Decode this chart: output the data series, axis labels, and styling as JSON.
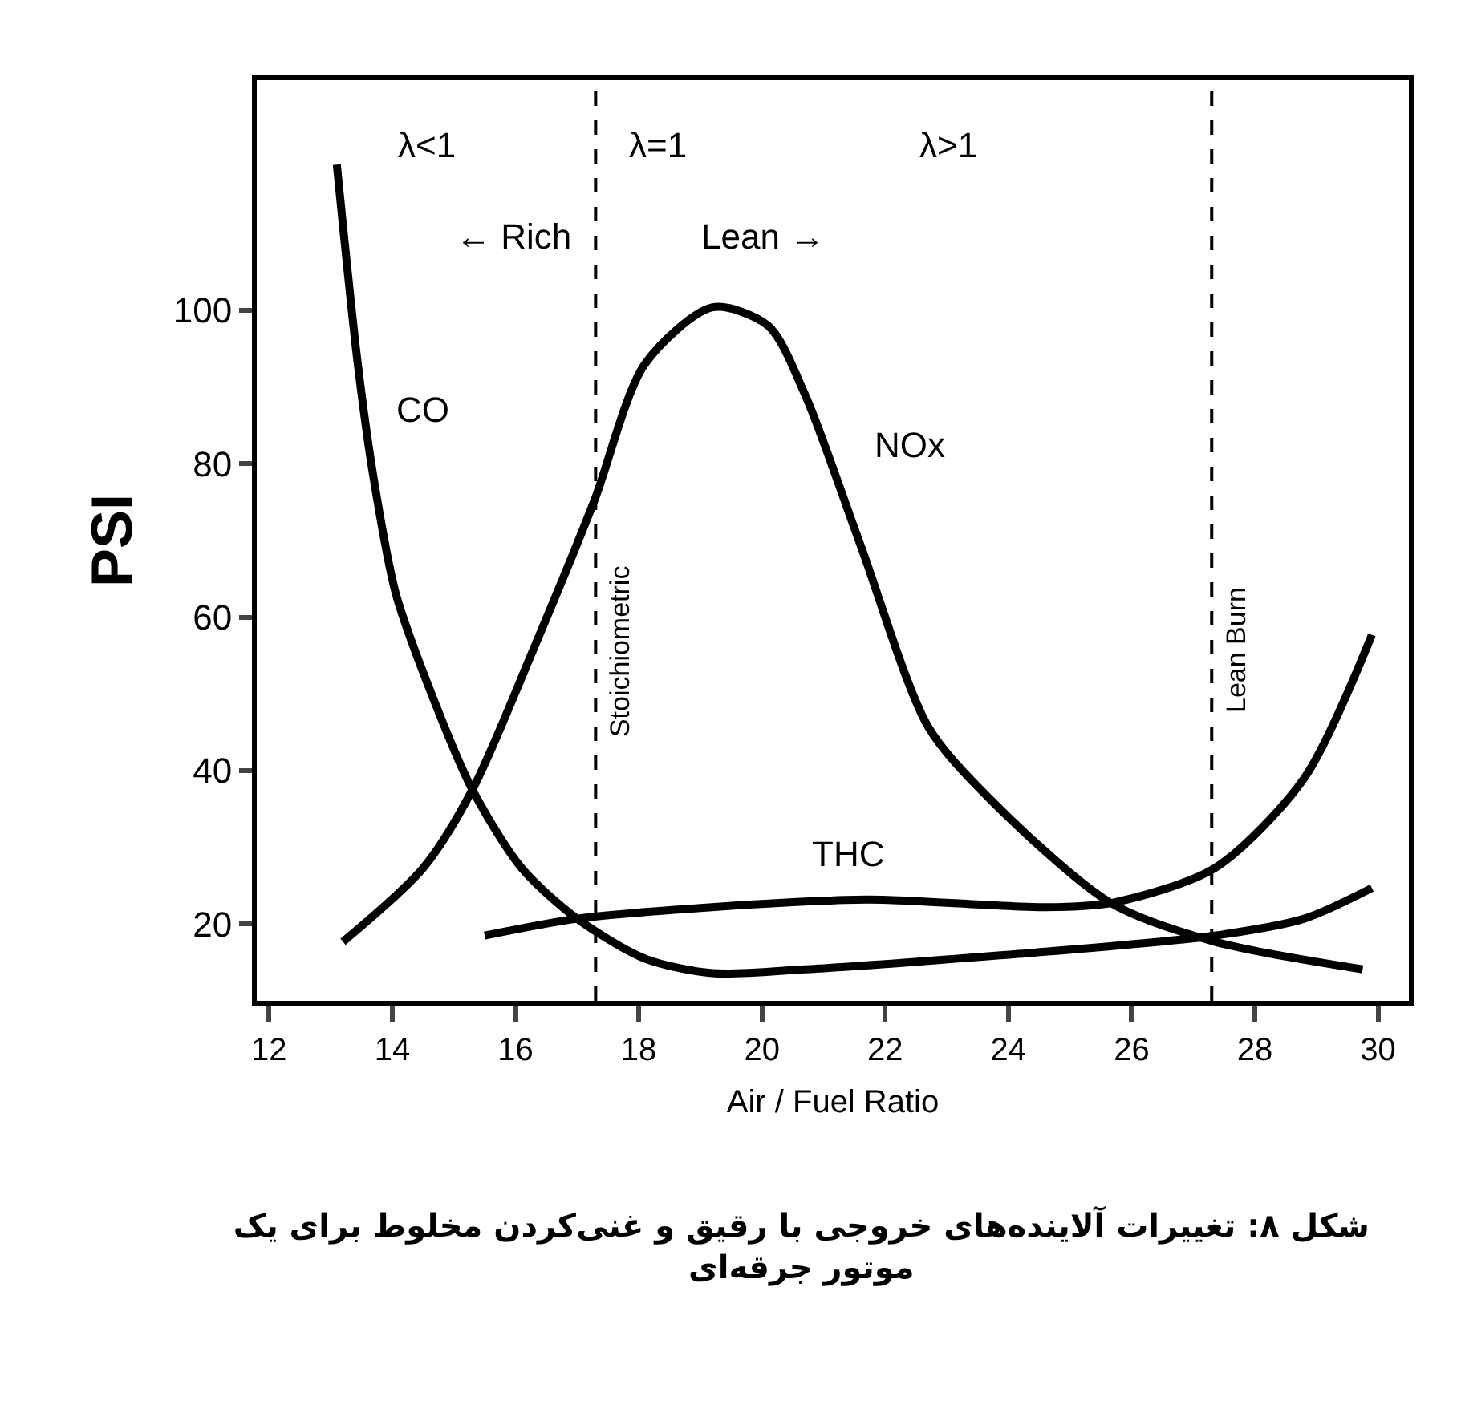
{
  "chart_data": {
    "type": "line",
    "title": "شکل ۸: تغییرات آلاینده‌های خروجی با رقیق و غنی‌کردن مخلوط برای یک\nموتور جرقه‌ای",
    "xlabel": "Air / Fuel Ratio",
    "ylabel": "PSI",
    "xlim": [
      11.8,
      30.5
    ],
    "ylim": [
      10,
      130
    ],
    "xticks": [
      12,
      14,
      16,
      18,
      20,
      22,
      24,
      26,
      28,
      30
    ],
    "yticks": [
      20,
      40,
      60,
      80,
      100
    ],
    "legend": false,
    "marker": "none",
    "line_style": "solid",
    "series": [
      {
        "name": "CO",
        "color": "#000000",
        "x": [
          13.1,
          13.44,
          13.7,
          14.06,
          14.7,
          15.3,
          16.1,
          17.0,
          18.1,
          19.2,
          20.7,
          24.3,
          27.35,
          28.8,
          29.9
        ],
        "values": [
          119,
          93,
          78,
          63,
          48.7,
          37.5,
          27.3,
          20.7,
          15.5,
          13.6,
          14.1,
          16.2,
          18.5,
          20.7,
          24.7
        ]
      },
      {
        "name": "NOx",
        "color": "#000000",
        "x": [
          13.2,
          14.5,
          15.3,
          16.3,
          17.27,
          18.1,
          19.2,
          20.1,
          20.7,
          21.6,
          22.7,
          23.7,
          25.65,
          27.35,
          29.75
        ],
        "values": [
          17.7,
          27.3,
          37.5,
          56,
          75,
          93,
          100.4,
          98,
          89,
          69.4,
          45.7,
          36.3,
          22.8,
          17.7,
          14.1
        ]
      },
      {
        "name": "THC",
        "color": "#000000",
        "x": [
          15.5,
          17.0,
          19.0,
          21.7,
          24.6,
          25.7,
          27.35,
          28.8,
          29.9
        ],
        "values": [
          18.5,
          20.7,
          22.1,
          23.2,
          22.2,
          22.8,
          27.3,
          39,
          57.7
        ]
      }
    ],
    "ref_lines": [
      {
        "axis": "x",
        "value": 17.3,
        "label": "Stoichiometric",
        "line_style": "dashed",
        "color": "#000000"
      },
      {
        "axis": "x",
        "value": 27.3,
        "label": "Lean Burn",
        "line_style": "dashed",
        "color": "#000000"
      }
    ],
    "annotations": [
      "← Rich",
      "Lean →",
      "λ<1",
      "λ=1",
      "λ>1"
    ]
  }
}
